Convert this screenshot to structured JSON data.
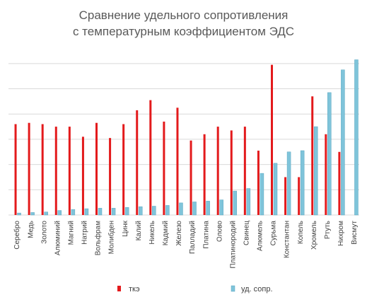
{
  "chart_data": {
    "type": "bar",
    "title_lines": [
      "Сравнение удельного сопротивления",
      "с температурным коэффициентом ЭДС"
    ],
    "categories": [
      "Серебро",
      "Медь",
      "Золото",
      "Алюминий",
      "Магний",
      "Натрий",
      "Вольфрам",
      "Молибден",
      "Цинк",
      "Калий",
      "Никель",
      "Кадмий",
      "Железо",
      "Палладий",
      "Платина",
      "Олово",
      "Платинородий",
      "Свинец",
      "Алюмель",
      "Сурьма",
      "Константан",
      "Копель",
      "Хромель",
      "Ртуть",
      "Нихром",
      "Висмут"
    ],
    "series": [
      {
        "name": "ткэ",
        "color": "#e31a1c",
        "values": [
          3.6,
          3.65,
          3.6,
          3.5,
          3.5,
          3.1,
          3.65,
          3.05,
          3.6,
          4.15,
          4.55,
          3.7,
          4.25,
          2.95,
          3.2,
          3.5,
          3.35,
          3.5,
          2.55,
          5.95,
          1.5,
          1.5,
          4.7,
          3.2,
          2.5,
          0.0
        ]
      },
      {
        "name": "уд. сопр.",
        "color": "#7fc4da",
        "values": [
          0.08,
          0.1,
          0.12,
          0.18,
          0.22,
          0.25,
          0.27,
          0.27,
          0.3,
          0.33,
          0.35,
          0.38,
          0.48,
          0.52,
          0.55,
          0.6,
          0.95,
          1.05,
          1.65,
          2.05,
          2.5,
          2.55,
          3.5,
          4.85,
          5.75,
          6.15
        ]
      }
    ],
    "ylim": [
      0,
      6.5
    ],
    "grid": true,
    "legend_position": "bottom"
  }
}
